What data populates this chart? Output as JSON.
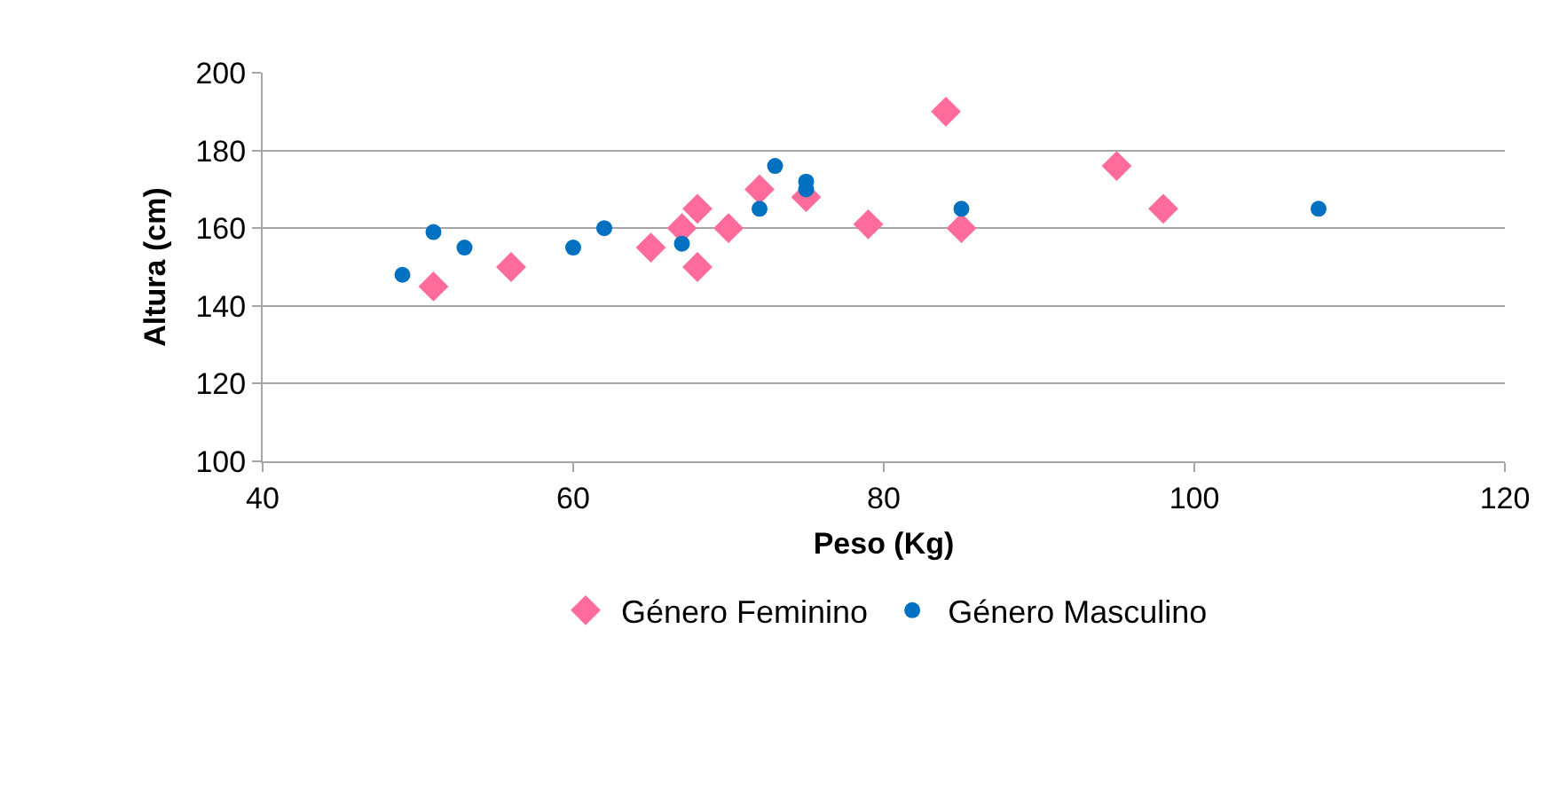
{
  "chart_data": {
    "type": "scatter",
    "xlabel": "Peso (Kg)",
    "ylabel": "Altura (cm)",
    "xlim": [
      40,
      120
    ],
    "xticks": [
      40,
      60,
      80,
      100,
      120
    ],
    "ylim": [
      100,
      200
    ],
    "yticks": [
      100,
      120,
      140,
      160,
      180,
      200
    ],
    "grid": "y",
    "legend": "bottom",
    "series": [
      {
        "name": "Género Feminino",
        "color": "#ff6b9a",
        "marker": "diamond",
        "x": [
          51,
          56,
          65,
          67,
          68,
          68,
          70,
          72,
          75,
          79,
          84,
          85,
          95,
          98
        ],
        "values": [
          145,
          150,
          155,
          160,
          165,
          150,
          160,
          170,
          168,
          161,
          190,
          160,
          176,
          165
        ]
      },
      {
        "name": "Género Masculino",
        "color": "#0070c0",
        "marker": "circle",
        "x": [
          49,
          51,
          53,
          60,
          62,
          67,
          72,
          73,
          75,
          75,
          85,
          108
        ],
        "values": [
          148,
          159,
          155,
          155,
          160,
          156,
          165,
          176,
          172,
          170,
          165,
          165
        ]
      }
    ]
  }
}
